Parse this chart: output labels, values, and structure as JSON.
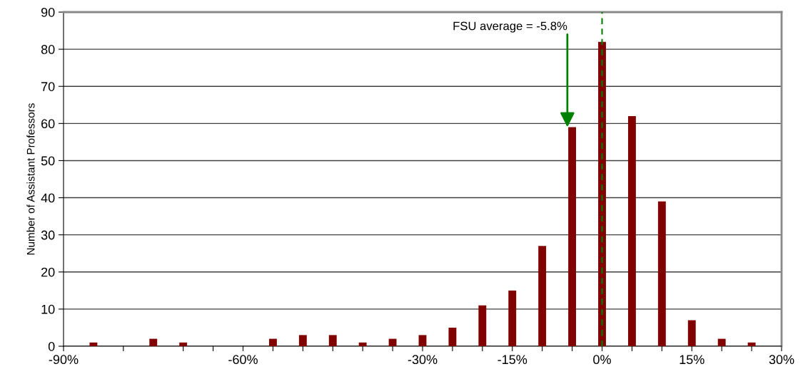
{
  "chart_data": {
    "type": "bar",
    "ylabel": "Number of Assistant Professors",
    "x": [
      -85,
      -80,
      -75,
      -70,
      -65,
      -60,
      -55,
      -50,
      -45,
      -40,
      -35,
      -30,
      -25,
      -20,
      -15,
      -10,
      -5,
      0,
      5,
      10,
      15,
      20,
      25
    ],
    "values": [
      1,
      0,
      2,
      1,
      0,
      0,
      2,
      3,
      3,
      1,
      2,
      3,
      5,
      11,
      15,
      27,
      59,
      82,
      62,
      39,
      7,
      2,
      1
    ],
    "color": "#800000",
    "xlim": [
      -90,
      30
    ],
    "xticks": [
      {
        "value": -90,
        "label": "-90%"
      },
      {
        "value": -80,
        "label": null
      },
      {
        "value": -70,
        "label": null
      },
      {
        "value": -65,
        "label": null
      },
      {
        "value": -60,
        "label": "-60%"
      },
      {
        "value": -55,
        "label": null
      },
      {
        "value": -50,
        "label": null
      },
      {
        "value": -45,
        "label": null
      },
      {
        "value": -40,
        "label": null
      },
      {
        "value": -35,
        "label": null
      },
      {
        "value": -30,
        "label": "-30%"
      },
      {
        "value": -25,
        "label": null
      },
      {
        "value": -20,
        "label": null
      },
      {
        "value": -15,
        "label": "-15%"
      },
      {
        "value": -10,
        "label": null
      },
      {
        "value": -5,
        "label": null
      },
      {
        "value": 0,
        "label": "0%"
      },
      {
        "value": 5,
        "label": null
      },
      {
        "value": 10,
        "label": null
      },
      {
        "value": 15,
        "label": "15%"
      },
      {
        "value": 20,
        "label": null
      },
      {
        "value": 25,
        "label": null
      },
      {
        "value": 30,
        "label": "30%"
      }
    ],
    "ylim": [
      0,
      90
    ],
    "yticks": [
      0,
      10,
      20,
      30,
      40,
      50,
      60,
      70,
      80,
      90
    ],
    "grid": "y",
    "ref_lines": [
      {
        "axis": "x",
        "value": 0,
        "color": "#008000",
        "line_style": "dashed"
      }
    ],
    "annotations": [
      {
        "text": "FSU average = -5.8%",
        "x": -5.8,
        "y": 59
      }
    ]
  }
}
